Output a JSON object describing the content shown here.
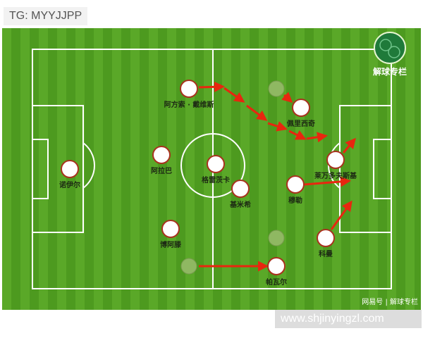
{
  "watermark_top": "TG: MYYJJPP",
  "watermark_bottom": "www.shjinyingzl.com",
  "logo_text": "解球专栏",
  "credit": "网易号 | 解球专栏",
  "colors": {
    "grass_dark": "#4d9a1f",
    "grass_light": "#5aa828",
    "line": "#ffffff",
    "arrow": "#e8260f",
    "player": "#ffffff",
    "player_border": "#a8321e"
  },
  "players": [
    {
      "name": "阿方索 · 戴维斯"
    },
    {
      "name": "佩里西奇"
    },
    {
      "name": "阿拉巴"
    },
    {
      "name": "格雷茨卡"
    },
    {
      "name": "基米希"
    },
    {
      "name": "穆勒"
    },
    {
      "name": "莱万多夫斯基"
    },
    {
      "name": "诺伊尔"
    },
    {
      "name": "博阿滕"
    },
    {
      "name": "帕瓦尔"
    },
    {
      "name": "科曼"
    }
  ]
}
